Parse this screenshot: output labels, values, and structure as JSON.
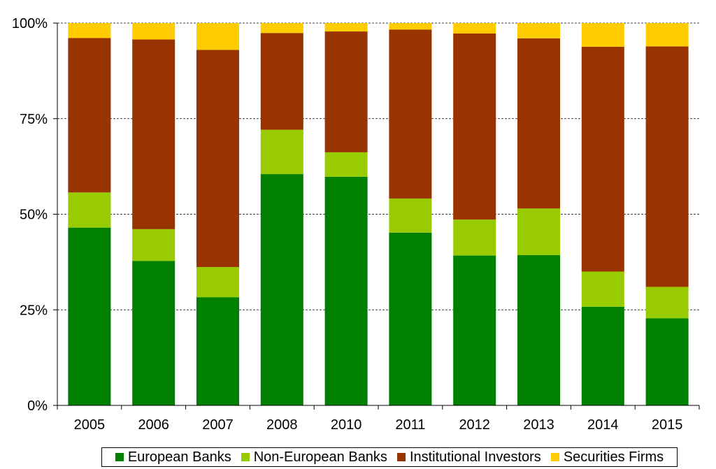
{
  "chart_data": {
    "type": "bar",
    "stacked": true,
    "categories": [
      "2005",
      "2006",
      "2007",
      "2008",
      "2010",
      "2011",
      "2012",
      "2013",
      "2014",
      "2015"
    ],
    "series": [
      {
        "name": "European Banks",
        "color": "#008000",
        "values": [
          46.5,
          37.8,
          28.3,
          60.5,
          59.8,
          45.2,
          39.2,
          39.3,
          25.8,
          22.8
        ]
      },
      {
        "name": "Non-European Banks",
        "color": "#99CC00",
        "values": [
          9.2,
          8.3,
          7.9,
          11.6,
          6.4,
          8.9,
          9.4,
          12.2,
          9.2,
          8.2
        ]
      },
      {
        "name": "Institutional Investors",
        "color": "#993300",
        "values": [
          40.4,
          49.6,
          56.8,
          25.3,
          31.6,
          44.2,
          48.7,
          44.5,
          58.8,
          62.9
        ]
      },
      {
        "name": "Securities Firms",
        "color": "#FFCC00",
        "values": [
          3.9,
          4.3,
          7.0,
          2.6,
          2.2,
          1.7,
          2.7,
          4.0,
          6.2,
          6.1
        ]
      }
    ],
    "y_ticks": [
      "0%",
      "25%",
      "50%",
      "75%",
      "100%"
    ],
    "ylim": [
      0,
      100
    ],
    "grid": true,
    "legend_position": "bottom"
  }
}
